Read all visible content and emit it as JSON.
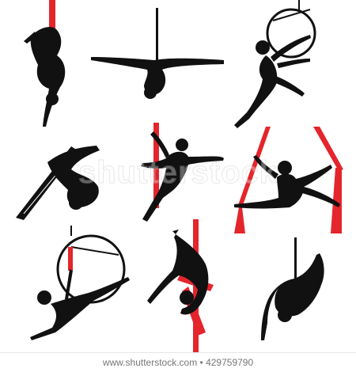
{
  "image": {
    "subject": "",
    "colors": {
      "silhouette": "#111111",
      "fabric": "#e4252c",
      "ring": "#111111",
      "background": "#ffffff"
    }
  },
  "figures": [
    {
      "name": "figure-1",
      "apparatus": "silks"
    },
    {
      "name": "figure-2",
      "apparatus": "rope"
    },
    {
      "name": "figure-3",
      "apparatus": "hoop"
    },
    {
      "name": "figure-4",
      "apparatus": "silks-bundle"
    },
    {
      "name": "figure-5",
      "apparatus": "silks"
    },
    {
      "name": "figure-6",
      "apparatus": "double-silks"
    },
    {
      "name": "figure-7",
      "apparatus": "hoop"
    },
    {
      "name": "figure-8",
      "apparatus": "silks"
    },
    {
      "name": "figure-9",
      "apparatus": "rope"
    }
  ],
  "watermark": "shutterstock",
  "footer": "www.shutterstock.com • 429759790"
}
